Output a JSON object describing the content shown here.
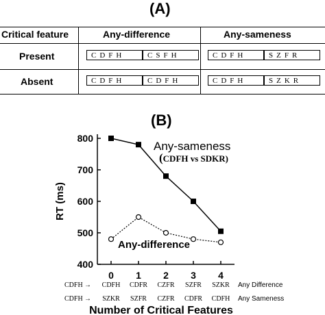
{
  "panel_a": {
    "label": "(A)",
    "headers": {
      "feature": "Critical feature",
      "diff": "Any-difference",
      "same": "Any-sameness"
    },
    "rows": [
      {
        "label": "Present",
        "diff": [
          "CDFH",
          "CSFH"
        ],
        "same": [
          "CDFH",
          "SZFR"
        ]
      },
      {
        "label": "Absent",
        "diff": [
          "CDFH",
          "CDFH"
        ],
        "same": [
          "CDFH",
          "SZKR"
        ]
      }
    ]
  },
  "panel_b": {
    "label": "(B)",
    "series_labels": {
      "sameness": "Any-sameness",
      "sameness_sub_open": "(",
      "sameness_sub": "CDFH vs SDKR)",
      "difference": "Any-difference"
    },
    "pair_rows": [
      {
        "base": "CDFH",
        "arrow": "→",
        "pairs": [
          "CDFH",
          "CDFR",
          "CZFR",
          "SZFR",
          "SZKR"
        ],
        "condition": "Any Difference"
      },
      {
        "base": "CDFH",
        "arrow": "→",
        "pairs": [
          "SZKR",
          "SZFR",
          "CZFR",
          "CDFR",
          "CDFH"
        ],
        "condition": "Any Sameness"
      }
    ]
  },
  "chart_data": {
    "type": "line",
    "x": [
      0,
      1,
      2,
      3,
      4
    ],
    "tick_labels_x": [
      "0",
      "1",
      "2",
      "3",
      "4"
    ],
    "tick_labels_y": [
      "400",
      "500",
      "600",
      "700",
      "800"
    ],
    "xlabel": "Number of Critical Features",
    "ylabel": "RT (ms)",
    "ylim": [
      400,
      800
    ],
    "series": [
      {
        "name": "Any-sameness",
        "values": [
          800,
          780,
          680,
          600,
          505
        ],
        "marker": "filled-square",
        "line": "solid"
      },
      {
        "name": "Any-difference",
        "values": [
          480,
          550,
          500,
          480,
          470
        ],
        "marker": "open-circle",
        "line": "dotted"
      }
    ]
  }
}
